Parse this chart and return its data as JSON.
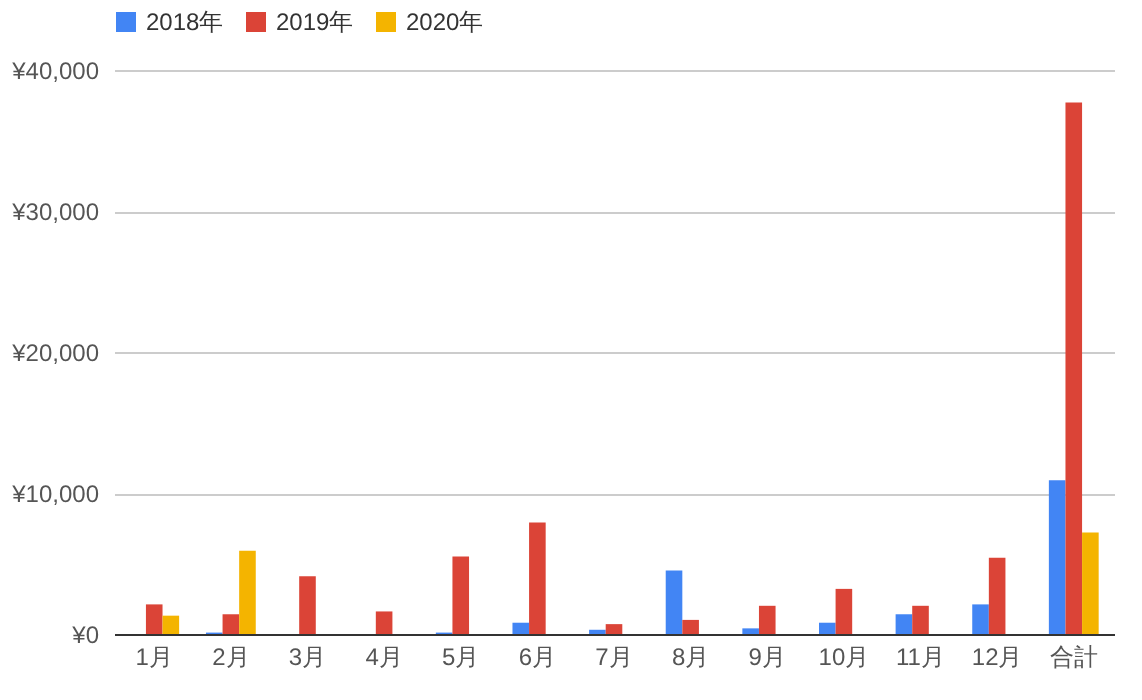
{
  "chart_data": {
    "type": "bar",
    "categories": [
      "1月",
      "2月",
      "3月",
      "4月",
      "5月",
      "6月",
      "7月",
      "8月",
      "9月",
      "10月",
      "11月",
      "12月",
      "合計"
    ],
    "series": [
      {
        "name": "2018年",
        "color": "#4285f4",
        "values": [
          null,
          100,
          null,
          null,
          100,
          800,
          300,
          4500,
          400,
          800,
          1400,
          2100,
          10900
        ]
      },
      {
        "name": "2019年",
        "color": "#db4437",
        "values": [
          2100,
          1400,
          4100,
          1600,
          5500,
          7900,
          700,
          1000,
          2000,
          3200,
          2000,
          5400,
          37700
        ]
      },
      {
        "name": "2020年",
        "color": "#f4b400",
        "values": [
          1300,
          5900,
          null,
          null,
          null,
          null,
          null,
          null,
          null,
          null,
          null,
          null,
          7200
        ]
      }
    ],
    "ylim": [
      0,
      40000
    ],
    "yticks": [
      {
        "value": 0,
        "label": "¥0"
      },
      {
        "value": 10000,
        "label": "¥10,000"
      },
      {
        "value": 20000,
        "label": "¥20,000"
      },
      {
        "value": 30000,
        "label": "¥30,000"
      },
      {
        "value": 40000,
        "label": "¥40,000"
      }
    ],
    "grid": "y",
    "legend": "top"
  }
}
